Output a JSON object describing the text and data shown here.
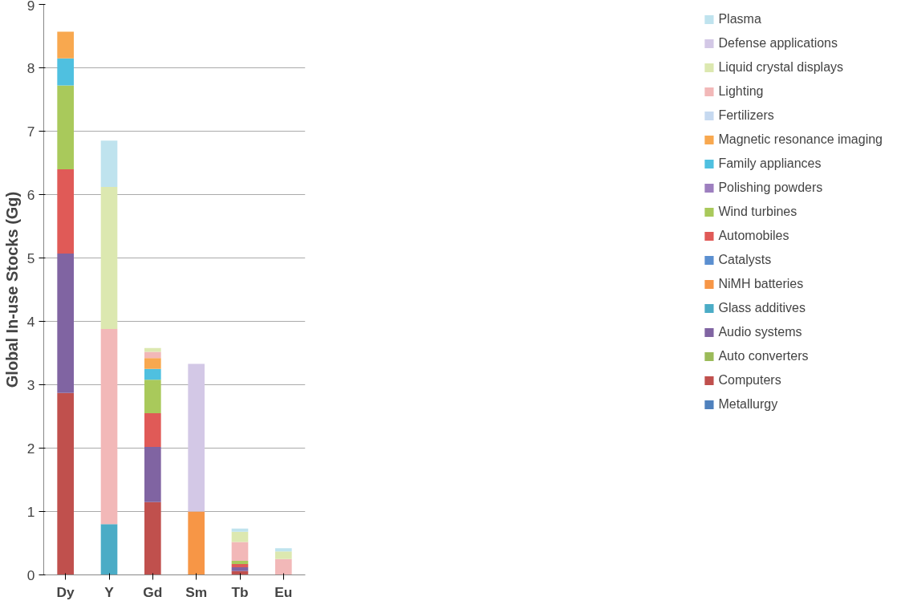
{
  "chart_data": {
    "type": "bar",
    "stacked": true,
    "ylabel": "Global In-use Stocks (Gg)",
    "categories": [
      "Dy",
      "Y",
      "Gd",
      "Sm",
      "Tb",
      "Eu"
    ],
    "ylim": [
      0,
      9
    ],
    "yticks": [
      0,
      1,
      2,
      3,
      4,
      5,
      6,
      7,
      8,
      9
    ],
    "grid": "y",
    "legend": "right",
    "series": [
      {
        "name": "Metallurgy",
        "color": "#4f81bd",
        "values": [
          null,
          null,
          null,
          null,
          null,
          null
        ]
      },
      {
        "name": "Computers",
        "color": "#c0504d",
        "values": [
          2.87,
          null,
          1.15,
          null,
          0.06,
          null
        ]
      },
      {
        "name": "Auto converters",
        "color": "#9bbb59",
        "values": [
          null,
          null,
          null,
          null,
          null,
          null
        ]
      },
      {
        "name": "Audio systems",
        "color": "#8064a2",
        "values": [
          2.2,
          null,
          0.87,
          null,
          0.06,
          null
        ]
      },
      {
        "name": "Glass additives",
        "color": "#4bacc6",
        "values": [
          null,
          0.8,
          null,
          null,
          null,
          null
        ]
      },
      {
        "name": "NiMH batteries",
        "color": "#f79646",
        "values": [
          null,
          null,
          null,
          1.0,
          null,
          null
        ]
      },
      {
        "name": "Catalysts",
        "color": "#5b8fd0",
        "values": [
          null,
          null,
          null,
          null,
          null,
          null
        ]
      },
      {
        "name": "Automobiles",
        "color": "#e05a57",
        "values": [
          1.33,
          null,
          0.53,
          null,
          0.05,
          null
        ]
      },
      {
        "name": "Wind turbines",
        "color": "#a9c95b",
        "values": [
          1.32,
          null,
          0.53,
          null,
          0.05,
          null
        ]
      },
      {
        "name": "Polishing powders",
        "color": "#9d7fbf",
        "values": [
          null,
          null,
          null,
          null,
          null,
          null
        ]
      },
      {
        "name": "Family appliances",
        "color": "#4fc0e0",
        "values": [
          0.43,
          null,
          0.17,
          null,
          null,
          null
        ]
      },
      {
        "name": "Magnetic resonance imaging",
        "color": "#f8a84f",
        "values": [
          0.42,
          null,
          0.17,
          null,
          null,
          null
        ]
      },
      {
        "name": "Fertilizers",
        "color": "#c6d9f0",
        "values": [
          null,
          null,
          null,
          null,
          null,
          null
        ]
      },
      {
        "name": "Lighting",
        "color": "#f2b8b8",
        "values": [
          null,
          3.08,
          0.1,
          null,
          0.3,
          0.25
        ]
      },
      {
        "name": "Liquid crystal displays",
        "color": "#dce8b0",
        "values": [
          null,
          2.24,
          0.06,
          null,
          0.16,
          0.12
        ]
      },
      {
        "name": "Defense applications",
        "color": "#d3c8e6",
        "values": [
          null,
          null,
          null,
          2.33,
          null,
          null
        ]
      },
      {
        "name": "Plasma",
        "color": "#bfe3ee",
        "values": [
          null,
          0.73,
          null,
          null,
          0.05,
          0.05
        ]
      }
    ]
  }
}
